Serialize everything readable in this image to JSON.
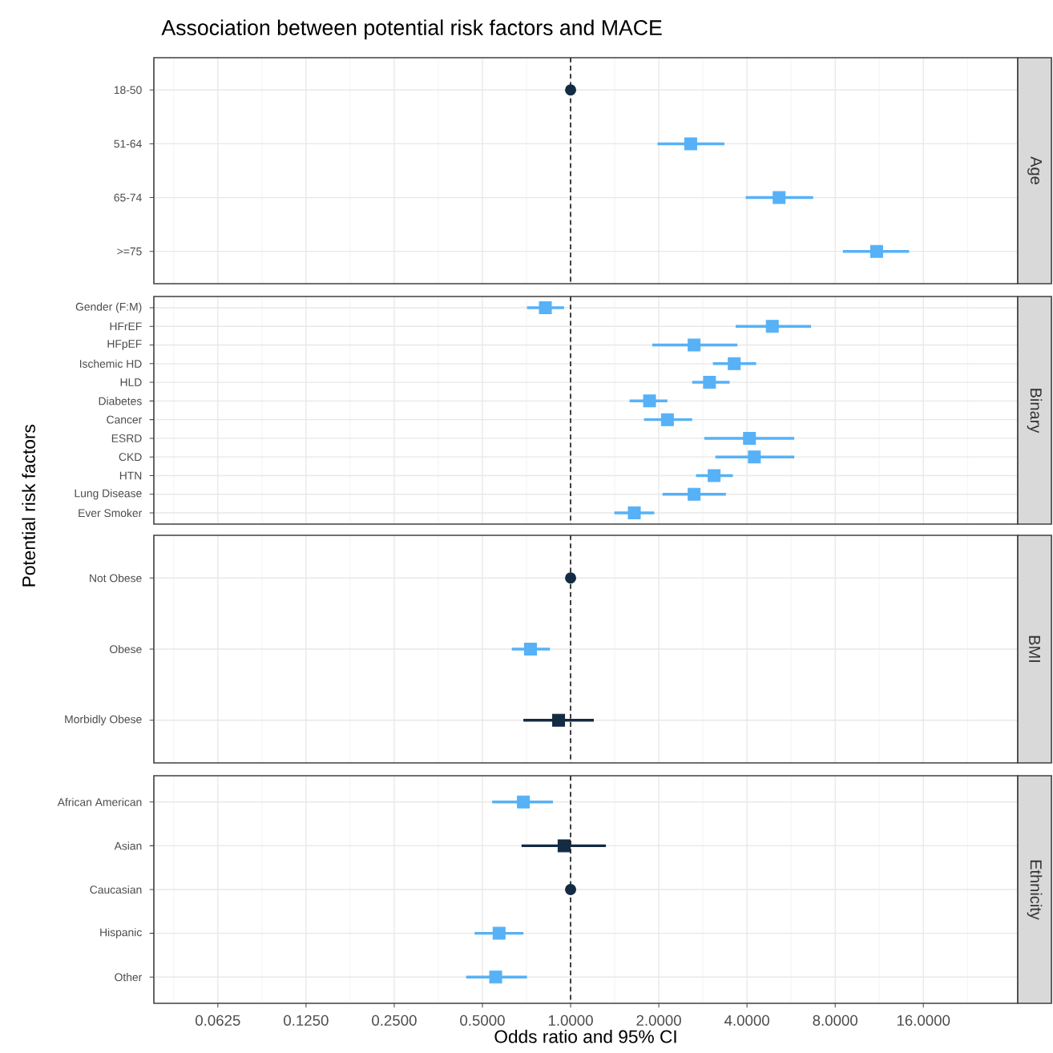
{
  "chart_data": [
    {
      "type": "scatter",
      "orientation": "horizontal",
      "title": "Association between potential risk factors and MACE",
      "y2label": "Age",
      "categories": [
        "18-50",
        "51-64",
        "65-74",
        ">=75"
      ],
      "series": [
        {
          "marker": "circle",
          "color": "#132b43",
          "values": [
            1,
            null,
            null,
            null
          ]
        },
        {
          "marker": "square",
          "color": "#56b1f7",
          "values": [
            null,
            2.57,
            5.15,
            11.08
          ],
          "errors": [
            null,
            [
              1.98,
              3.35
            ],
            [
              3.96,
              6.73
            ],
            [
              8.5,
              14.3
            ]
          ]
        }
      ],
      "xlim": [
        0.0378,
        33.6
      ],
      "log": "x",
      "grid": true,
      "tick_labels": "y",
      "ref_lines": [
        {
          "axis": "x",
          "value": 1,
          "line_style": "dashed"
        }
      ]
    },
    {
      "type": "scatter",
      "orientation": "horizontal",
      "ylabel": "Potential risk factors",
      "y2label": "Binary",
      "categories": [
        "Gender (F:M)",
        "HFrEF",
        "HFpEF",
        "Ischemic HD",
        "HLD",
        "Diabetes",
        "Cancer",
        "ESRD",
        "CKD",
        "HTN",
        "Lung Disease",
        "Ever Smoker"
      ],
      "series": [
        {
          "marker": "square",
          "color": "#56b1f7",
          "values": [
            0.82,
            4.88,
            2.64,
            3.62,
            2.98,
            1.86,
            2.14,
            4.08,
            4.24,
            3.09,
            2.64,
            1.65
          ],
          "errors": [
            [
              0.71,
              0.95
            ],
            [
              3.66,
              6.62
            ],
            [
              1.9,
              3.71
            ],
            [
              3.06,
              4.3
            ],
            [
              2.6,
              3.49
            ],
            [
              1.59,
              2.14
            ],
            [
              1.78,
              2.6
            ],
            [
              2.86,
              5.8
            ],
            [
              3.12,
              5.8
            ],
            [
              2.68,
              3.58
            ],
            [
              2.06,
              3.39
            ],
            [
              1.41,
              1.93
            ]
          ]
        }
      ],
      "xlim": [
        0.0378,
        33.6
      ],
      "log": "x",
      "grid": true,
      "tick_labels": "y",
      "ref_lines": [
        {
          "axis": "x",
          "value": 1,
          "line_style": "dashed"
        }
      ]
    },
    {
      "type": "scatter",
      "orientation": "horizontal",
      "y2label": "BMI",
      "categories": [
        "Not Obese",
        "Obese",
        "Morbidly Obese"
      ],
      "series": [
        {
          "marker": "circle",
          "color": "#132b43",
          "values": [
            1,
            null,
            null
          ]
        },
        {
          "marker": "square",
          "colors": [
            null,
            "#56b1f7",
            "#132b43"
          ],
          "values": [
            null,
            0.73,
            0.91
          ],
          "errors": [
            null,
            [
              0.63,
              0.85
            ],
            [
              0.69,
              1.2
            ]
          ]
        }
      ],
      "xlim": [
        0.0378,
        33.6
      ],
      "log": "x",
      "grid": true,
      "tick_labels": "y",
      "ref_lines": [
        {
          "axis": "x",
          "value": 1,
          "line_style": "dashed"
        }
      ]
    },
    {
      "type": "scatter",
      "orientation": "horizontal",
      "xlabel": "Odds ratio and 95% CI",
      "y2label": "Ethnicity",
      "categories": [
        "African American",
        "Asian",
        "Caucasian",
        "Hispanic",
        "Other"
      ],
      "series": [
        {
          "marker": "circle",
          "color": "#132b43",
          "values": [
            null,
            null,
            1,
            null,
            null
          ]
        },
        {
          "marker": "square",
          "colors": [
            "#56b1f7",
            "#132b43",
            null,
            "#56b1f7",
            "#56b1f7"
          ],
          "values": [
            0.69,
            0.95,
            null,
            0.57,
            0.555
          ],
          "errors": [
            [
              0.54,
              0.87
            ],
            [
              0.68,
              1.32
            ],
            null,
            [
              0.47,
              0.69
            ],
            [
              0.44,
              0.71
            ]
          ]
        }
      ],
      "xlim": [
        0.0378,
        33.6
      ],
      "xticks": [
        0.0625,
        {
          "value": 0.125,
          "label": "0.1250"
        },
        {
          "value": 0.25,
          "label": "0.2500"
        },
        {
          "value": 0.5,
          "label": "0.5000"
        },
        {
          "value": 1,
          "label": "1.0000"
        },
        {
          "value": 2,
          "label": "2.0000"
        },
        {
          "value": 4,
          "label": "4.0000"
        },
        {
          "value": 8,
          "label": "8.0000"
        },
        {
          "value": 16,
          "label": "16.0000"
        }
      ],
      "log": "x",
      "grid": true,
      "ref_lines": [
        {
          "axis": "x",
          "value": 1,
          "line_style": "dashed"
        }
      ]
    }
  ]
}
